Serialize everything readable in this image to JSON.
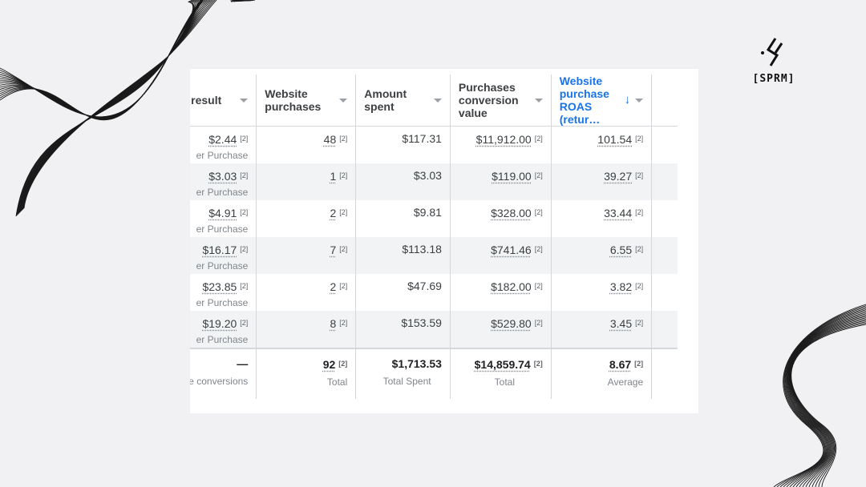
{
  "brand": {
    "logo_text": "[SPRM]",
    "logo_icon": "sprm-logo-icon"
  },
  "table": {
    "headers": [
      {
        "label": "er result",
        "has_dropdown": true
      },
      {
        "label": "Website purchases",
        "has_dropdown": true
      },
      {
        "label": "Amount spent",
        "has_dropdown": true
      },
      {
        "label": "Purchases conversion value",
        "has_dropdown": true
      },
      {
        "label": "Website purchase ROAS (retur…",
        "has_dropdown": true,
        "sorted": "descending"
      }
    ],
    "footnote_marker": "[2]",
    "rows": [
      {
        "cost": "$2.44",
        "cost_sub": "er Purchase",
        "purchases": "48",
        "spent": "$117.31",
        "value": "$11,912.00",
        "roas": "101.54"
      },
      {
        "cost": "$3.03",
        "cost_sub": "er Purchase",
        "purchases": "1",
        "spent": "$3.03",
        "value": "$119.00",
        "roas": "39.27"
      },
      {
        "cost": "$4.91",
        "cost_sub": "er Purchase",
        "purchases": "2",
        "spent": "$9.81",
        "value": "$328.00",
        "roas": "33.44"
      },
      {
        "cost": "$16.17",
        "cost_sub": "er Purchase",
        "purchases": "7",
        "spent": "$113.18",
        "value": "$741.46",
        "roas": "6.55"
      },
      {
        "cost": "$23.85",
        "cost_sub": "er Purchase",
        "purchases": "2",
        "spent": "$47.69",
        "value": "$182.00",
        "roas": "3.82"
      },
      {
        "cost": "$19.20",
        "cost_sub": "er Purchase",
        "purchases": "8",
        "spent": "$153.59",
        "value": "$529.80",
        "roas": "3.45"
      }
    ],
    "totals": {
      "cost": "—",
      "cost_sub": "ole conversions",
      "purchases": "92",
      "purchases_sub": "Total",
      "spent": "$1,713.53",
      "spent_sub": "Total Spent",
      "value": "$14,859.74",
      "value_sub": "Total",
      "roas": "8.67",
      "roas_sub": "Average"
    }
  },
  "colors": {
    "accent": "#1a73e8",
    "row_alt": "#f1f3f4",
    "background": "#f1f1f3"
  }
}
